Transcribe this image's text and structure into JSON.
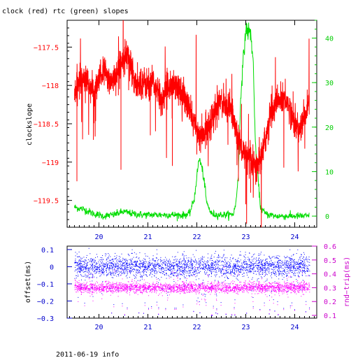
{
  "header": {
    "title": "clock (red) rtc (green) slopes"
  },
  "footer": {
    "text": "2011-06-19 info"
  },
  "colors": {
    "red": "#ff0000",
    "green": "#00dd00",
    "blue": "#0000ff",
    "magenta": "#ff00ff",
    "axis_green": "#00cc00",
    "axis_blue": "#0000cc",
    "axis_magenta": "#cc00cc"
  },
  "chart_data": [
    {
      "type": "line",
      "title": "clock (red) rtc (green) slopes",
      "xlabel": "",
      "ylabel": "clockslope",
      "ylabel_right": "",
      "xlim": [
        19.35,
        24.45
      ],
      "ylim": [
        -119.85,
        -117.15
      ],
      "ylim_right": [
        -2.5,
        44
      ],
      "x_ticks": [
        20,
        21,
        22,
        23,
        24
      ],
      "x_tick_labels": [
        "20",
        "21",
        "22",
        "23",
        "24"
      ],
      "y_ticks": [
        -117.5,
        -118,
        -118.5,
        -119,
        -119.5
      ],
      "y_tick_labels": [
        "−117.5",
        "−118",
        "−118.5",
        "−119",
        "−119.5"
      ],
      "y_right_ticks": [
        0,
        10,
        20,
        30,
        40
      ],
      "y_right_tick_labels": [
        "0",
        "10",
        "20",
        "30",
        "40"
      ],
      "series": [
        {
          "name": "clock",
          "axis": "left",
          "color": "#ff0000",
          "x": [
            19.5,
            19.6,
            19.7,
            19.8,
            19.9,
            20.0,
            20.1,
            20.2,
            20.3,
            20.4,
            20.5,
            20.6,
            20.7,
            20.8,
            20.9,
            21.0,
            21.1,
            21.2,
            21.3,
            21.4,
            21.5,
            21.6,
            21.7,
            21.8,
            21.9,
            22.0,
            22.1,
            22.2,
            22.3,
            22.4,
            22.5,
            22.6,
            22.7,
            22.8,
            22.9,
            23.0,
            23.1,
            23.2,
            23.3,
            23.4,
            23.5,
            23.6,
            23.7,
            23.8,
            23.9,
            24.0,
            24.1,
            24.2,
            24.3
          ],
          "y": [
            -118.1,
            -117.95,
            -117.85,
            -118.0,
            -118.1,
            -117.95,
            -117.8,
            -117.95,
            -117.9,
            -117.8,
            -117.6,
            -117.6,
            -117.9,
            -118.0,
            -117.95,
            -118.0,
            -117.95,
            -118.1,
            -118.2,
            -118.0,
            -117.95,
            -118.0,
            -118.1,
            -118.25,
            -118.4,
            -118.6,
            -118.7,
            -118.55,
            -118.45,
            -118.3,
            -118.2,
            -118.25,
            -118.3,
            -118.6,
            -118.8,
            -118.95,
            -119.0,
            -119.1,
            -118.95,
            -118.7,
            -118.4,
            -118.25,
            -118.2,
            -118.15,
            -118.3,
            -118.5,
            -118.6,
            -118.4,
            -118.2
          ],
          "noise": 0.18,
          "spikes": [
            [
              19.55,
              -119.25
            ],
            [
              20.45,
              -119.1
            ],
            [
              21.05,
              -118.65
            ],
            [
              21.5,
              -119.05
            ],
            [
              22.0,
              -118.9
            ],
            [
              22.85,
              -119.25
            ],
            [
              23.0,
              -119.55
            ],
            [
              23.1,
              -119.4
            ]
          ]
        },
        {
          "name": "rtc",
          "axis": "right",
          "color": "#00dd00",
          "x": [
            19.5,
            19.7,
            19.9,
            20.1,
            20.3,
            20.5,
            20.7,
            20.9,
            21.1,
            21.3,
            21.5,
            21.7,
            21.85,
            21.95,
            22.0,
            22.05,
            22.1,
            22.15,
            22.2,
            22.3,
            22.4,
            22.5,
            22.6,
            22.7,
            22.75,
            22.8,
            22.85,
            22.9,
            23.0,
            23.1,
            23.15,
            23.2,
            23.3,
            23.4,
            23.6,
            23.8,
            24.0,
            24.3
          ],
          "y": [
            2,
            1.5,
            0.5,
            0,
            0.3,
            1,
            0.5,
            0.3,
            0.3,
            0.3,
            0.3,
            0.2,
            0.5,
            4,
            9,
            13,
            11,
            8,
            3,
            0.5,
            0.3,
            0.3,
            0.3,
            0.3,
            0.6,
            3,
            10,
            28,
            42,
            41,
            35,
            15,
            2,
            0.5,
            0,
            0,
            0,
            0
          ],
          "noise": 0.4
        }
      ]
    },
    {
      "type": "scatter",
      "title": "",
      "xlabel": "",
      "ylabel": "offset(ms)",
      "ylabel_right": "rnd−trip(ms)",
      "xlim": [
        19.35,
        24.45
      ],
      "ylim": [
        -0.3,
        0.12
      ],
      "ylim_right": [
        0.08,
        0.6
      ],
      "x_ticks": [
        20,
        21,
        22,
        23,
        24
      ],
      "x_tick_labels": [
        "20",
        "21",
        "22",
        "23",
        "24"
      ],
      "y_ticks": [
        0.1,
        0,
        -0.1,
        -0.2,
        -0.3
      ],
      "y_tick_labels": [
        "0.1",
        "0",
        "−0.1",
        "−0.2",
        "−0.3"
      ],
      "y_right_ticks": [
        0.1,
        0.2,
        0.3,
        0.4,
        0.5,
        0.6
      ],
      "y_right_tick_labels": [
        "0.1",
        "0.2",
        "0.3",
        "0.4",
        "0.5",
        "0.6"
      ],
      "series": [
        {
          "name": "offset",
          "axis": "left",
          "color": "#0000ff",
          "x_range": [
            19.5,
            24.3
          ],
          "center": 0.0,
          "spread": 0.03,
          "outlier_range": [
            -0.29,
            0.1
          ]
        },
        {
          "name": "rnd-trip",
          "axis": "right",
          "color": "#ff00ff",
          "x_range": [
            19.5,
            24.3
          ],
          "center": 0.3,
          "spread": 0.018,
          "outlier_range": [
            0.1,
            0.45
          ]
        }
      ]
    }
  ]
}
